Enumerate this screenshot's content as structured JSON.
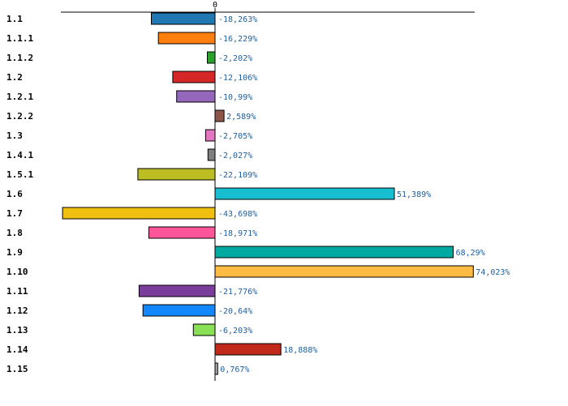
{
  "chart_data": {
    "type": "bar",
    "orientation": "horizontal",
    "title": "",
    "xlabel": "",
    "ylabel": "",
    "zero_tick_label": "0",
    "xlim": [
      -50,
      80
    ],
    "grid": false,
    "legend": "none",
    "categories": [
      "1.1",
      "1.1.1",
      "1.1.2",
      "1.2",
      "1.2.1",
      "1.2.2",
      "1.3",
      "1.4.1",
      "1.5.1",
      "1.6",
      "1.7",
      "1.8",
      "1.9",
      "1.10",
      "1.11",
      "1.12",
      "1.13",
      "1.14",
      "1.15"
    ],
    "values": [
      -18.263,
      -16.229,
      -2.202,
      -12.106,
      -10.99,
      2.589,
      -2.705,
      -2.027,
      -22.109,
      51.389,
      -43.698,
      -18.971,
      68.29,
      74.023,
      -21.776,
      -20.64,
      -6.203,
      18.888,
      0.767
    ],
    "value_labels": [
      "-18,263%",
      "-16,229%",
      "-2,202%",
      "-12,106%",
      "-10,99%",
      "2,589%",
      "-2,705%",
      "-2,027%",
      "-22,109%",
      "51,389%",
      "-43,698%",
      "-18,971%",
      "68,29%",
      "74,023%",
      "-21,776%",
      "-20,64%",
      "-6,203%",
      "18,888%",
      "0,767%"
    ],
    "colors": [
      "#1f77b4",
      "#ff7f0e",
      "#2ca02c",
      "#d62728",
      "#9467bd",
      "#8c564b",
      "#e377c2",
      "#7f7f7f",
      "#bcbd22",
      "#17becf",
      "#f0c010",
      "#ff5599",
      "#00aaa0",
      "#ffbb44",
      "#7a3d9a",
      "#1188ff",
      "#88e055",
      "#c12a1a",
      "#aaaaaa"
    ]
  }
}
